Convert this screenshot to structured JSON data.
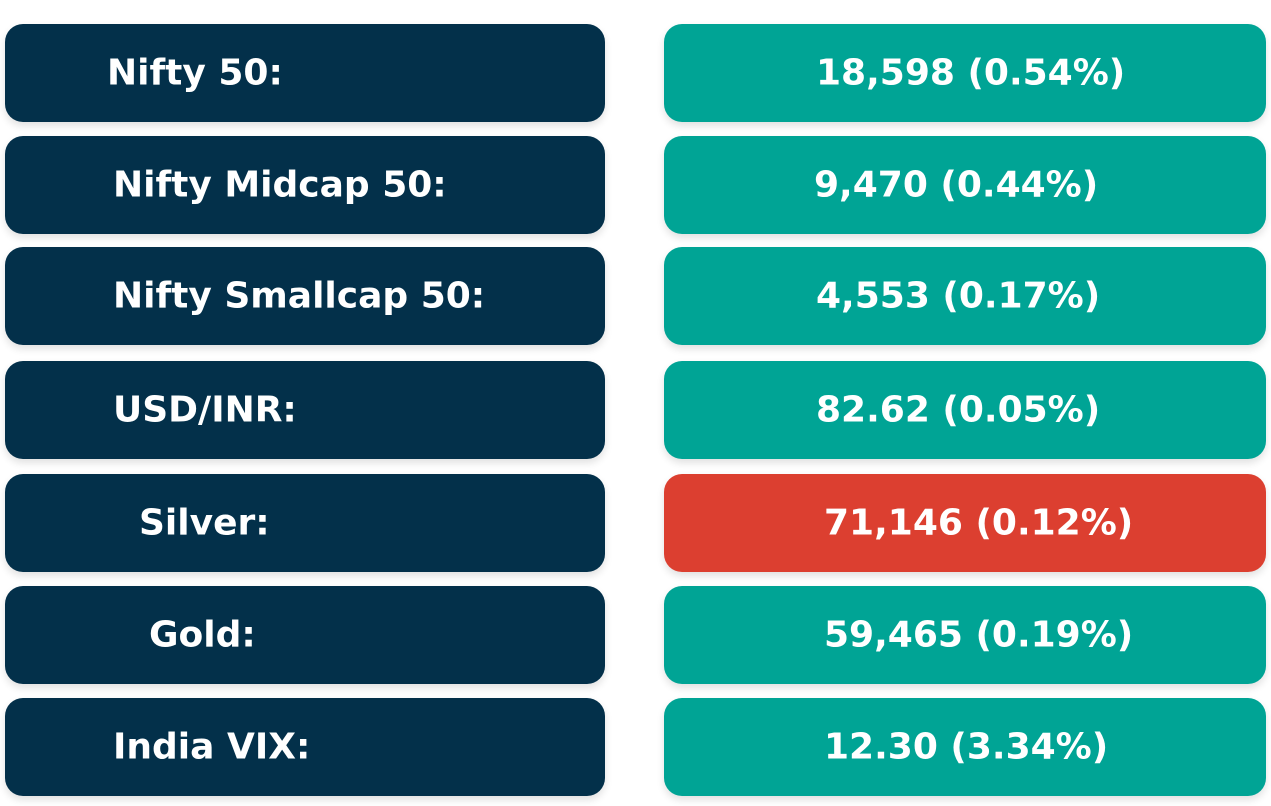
{
  "colors": {
    "label_bg": "#03304a",
    "positive_bg": "#00a495",
    "negative_bg": "#dc3f30",
    "text": "#ffffff"
  },
  "rows": [
    {
      "label": "Nifty 50:",
      "value": "18,598 (0.54%)",
      "status": "positive"
    },
    {
      "label": "Nifty Midcap 50:",
      "value": "9,470 (0.44%)",
      "status": "positive"
    },
    {
      "label": "Nifty Smallcap 50:",
      "value": "4,553 (0.17%)",
      "status": "positive"
    },
    {
      "label": "USD/INR:",
      "value": "82.62 (0.05%)",
      "status": "positive"
    },
    {
      "label": "Silver:",
      "value": "71,146 (0.12%)",
      "status": "negative"
    },
    {
      "label": "Gold:",
      "value": "59,465 (0.19%)",
      "status": "positive"
    },
    {
      "label": "India VIX:",
      "value": "12.30 (3.34%)",
      "status": "positive"
    }
  ]
}
